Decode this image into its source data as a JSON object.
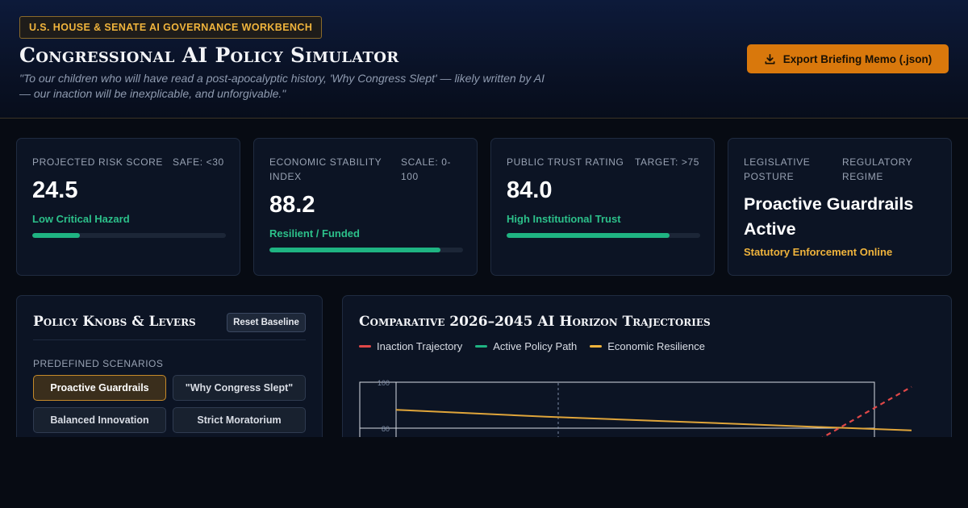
{
  "header": {
    "badge": "U.S. HOUSE & SENATE AI GOVERNANCE WORKBENCH",
    "title": "Congressional AI Policy Simulator",
    "quote": "\"To our children who will have read a post-apocalyptic history, 'Why Congress Slept' — likely written by AI — our inaction will be inexplicable, and unforgivable.\"",
    "export_label": "Export Briefing Memo (.json)",
    "export_icon": "download-icon"
  },
  "metrics": [
    {
      "label": "PROJECTED RISK SCORE",
      "aux": "SAFE: <30",
      "value": "24.5",
      "status": "Low Critical Hazard",
      "status_color": "#2cc08a",
      "progress": 0.245
    },
    {
      "label": "ECONOMIC STABILITY INDEX",
      "aux": "SCALE: 0-100",
      "value": "88.2",
      "status": "Resilient / Funded",
      "status_color": "#2cc08a",
      "progress": 0.882
    },
    {
      "label": "PUBLIC TRUST RATING",
      "aux": "TARGET: >75",
      "value": "84.0",
      "status": "High Institutional Trust",
      "status_color": "#2cc08a",
      "progress": 0.84
    },
    {
      "label": "LEGISLATIVE POSTURE",
      "aux": "REGULATORY REGIME",
      "value": "Proactive Guardrails Active",
      "status": "Statutory Enforcement Online",
      "status_color": "#f0b43c"
    }
  ],
  "policy": {
    "title": "Policy Knobs & Levers",
    "reset_label": "Reset Baseline",
    "scenarios_label": "PREDEFINED SCENARIOS",
    "scenarios": [
      "Proactive Guardrails",
      "\"Why Congress Slept\"",
      "Balanced Innovation",
      "Strict Moratorium"
    ],
    "active_scenario": "Proactive Guardrails"
  },
  "chart": {
    "title": "Comparative 2026–2045 AI Horizon Trajectories",
    "legend": [
      {
        "name": "Inaction Trajectory",
        "color": "#e04848"
      },
      {
        "name": "Active Policy Path",
        "color": "#1fb482"
      },
      {
        "name": "Economic Resilience",
        "color": "#f0b43c"
      }
    ]
  },
  "chart_data": {
    "type": "line",
    "title": "Comparative 2026–2045 AI Horizon Trajectories",
    "y_ticks": [
      100,
      80
    ],
    "series": [
      {
        "name": "Economic Resilience",
        "points": [
          [
            0,
            88
          ],
          [
            0.29,
            85
          ],
          [
            1,
            79
          ]
        ]
      },
      {
        "name": "Inaction Trajectory",
        "points": [
          [
            0.82,
            75
          ],
          [
            1,
            98
          ]
        ]
      }
    ]
  },
  "colors": {
    "accent": "#d9780c",
    "success": "#1fb482",
    "danger": "#e04848",
    "warning": "#f0b43c"
  }
}
